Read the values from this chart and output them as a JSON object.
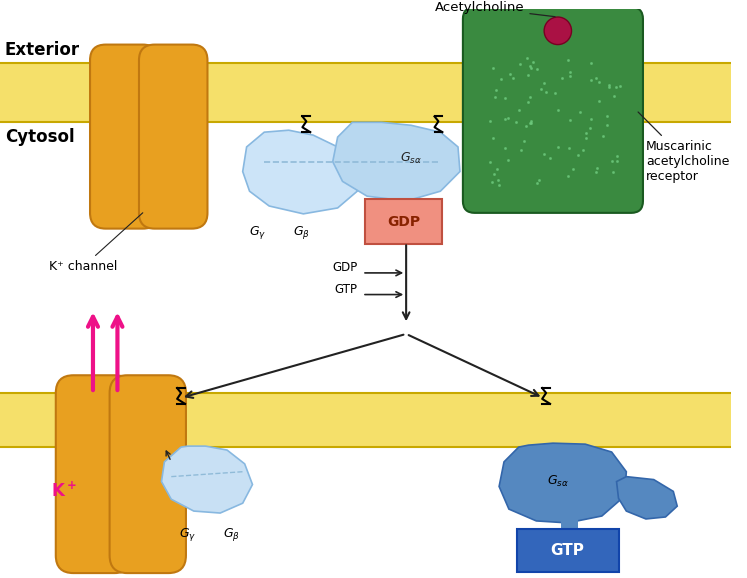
{
  "bg_color": "#FFFFFF",
  "membrane_color": "#F5E06A",
  "membrane_edge": "#C8A800",
  "channel_color": "#E8A020",
  "channel_edge": "#C07810",
  "receptor_green": "#3A8A40",
  "receptor_edge": "#1A5A20",
  "receptor_dot": "#AA1144",
  "gprotein_light": "#B8D8F0",
  "gprotein_med": "#88B8E0",
  "gprotein_dark": "#5588C0",
  "gdp_fill": "#F09080",
  "gdp_edge": "#C05040",
  "gtp_fill": "#3366BB",
  "gtp_edge": "#1144AA",
  "arrow_color": "#222222",
  "magenta": "#EE1188",
  "exterior_label": "Exterior",
  "cytosol_label": "Cytosol",
  "ach_label": "Acetylcholine",
  "musc_label": "Muscarinic\nacetylcholine\nreceptor",
  "kchan_label": "K⁺ channel",
  "kion_label": "K⁺",
  "gdp_label": "GDP",
  "gtp_label": "GTP"
}
